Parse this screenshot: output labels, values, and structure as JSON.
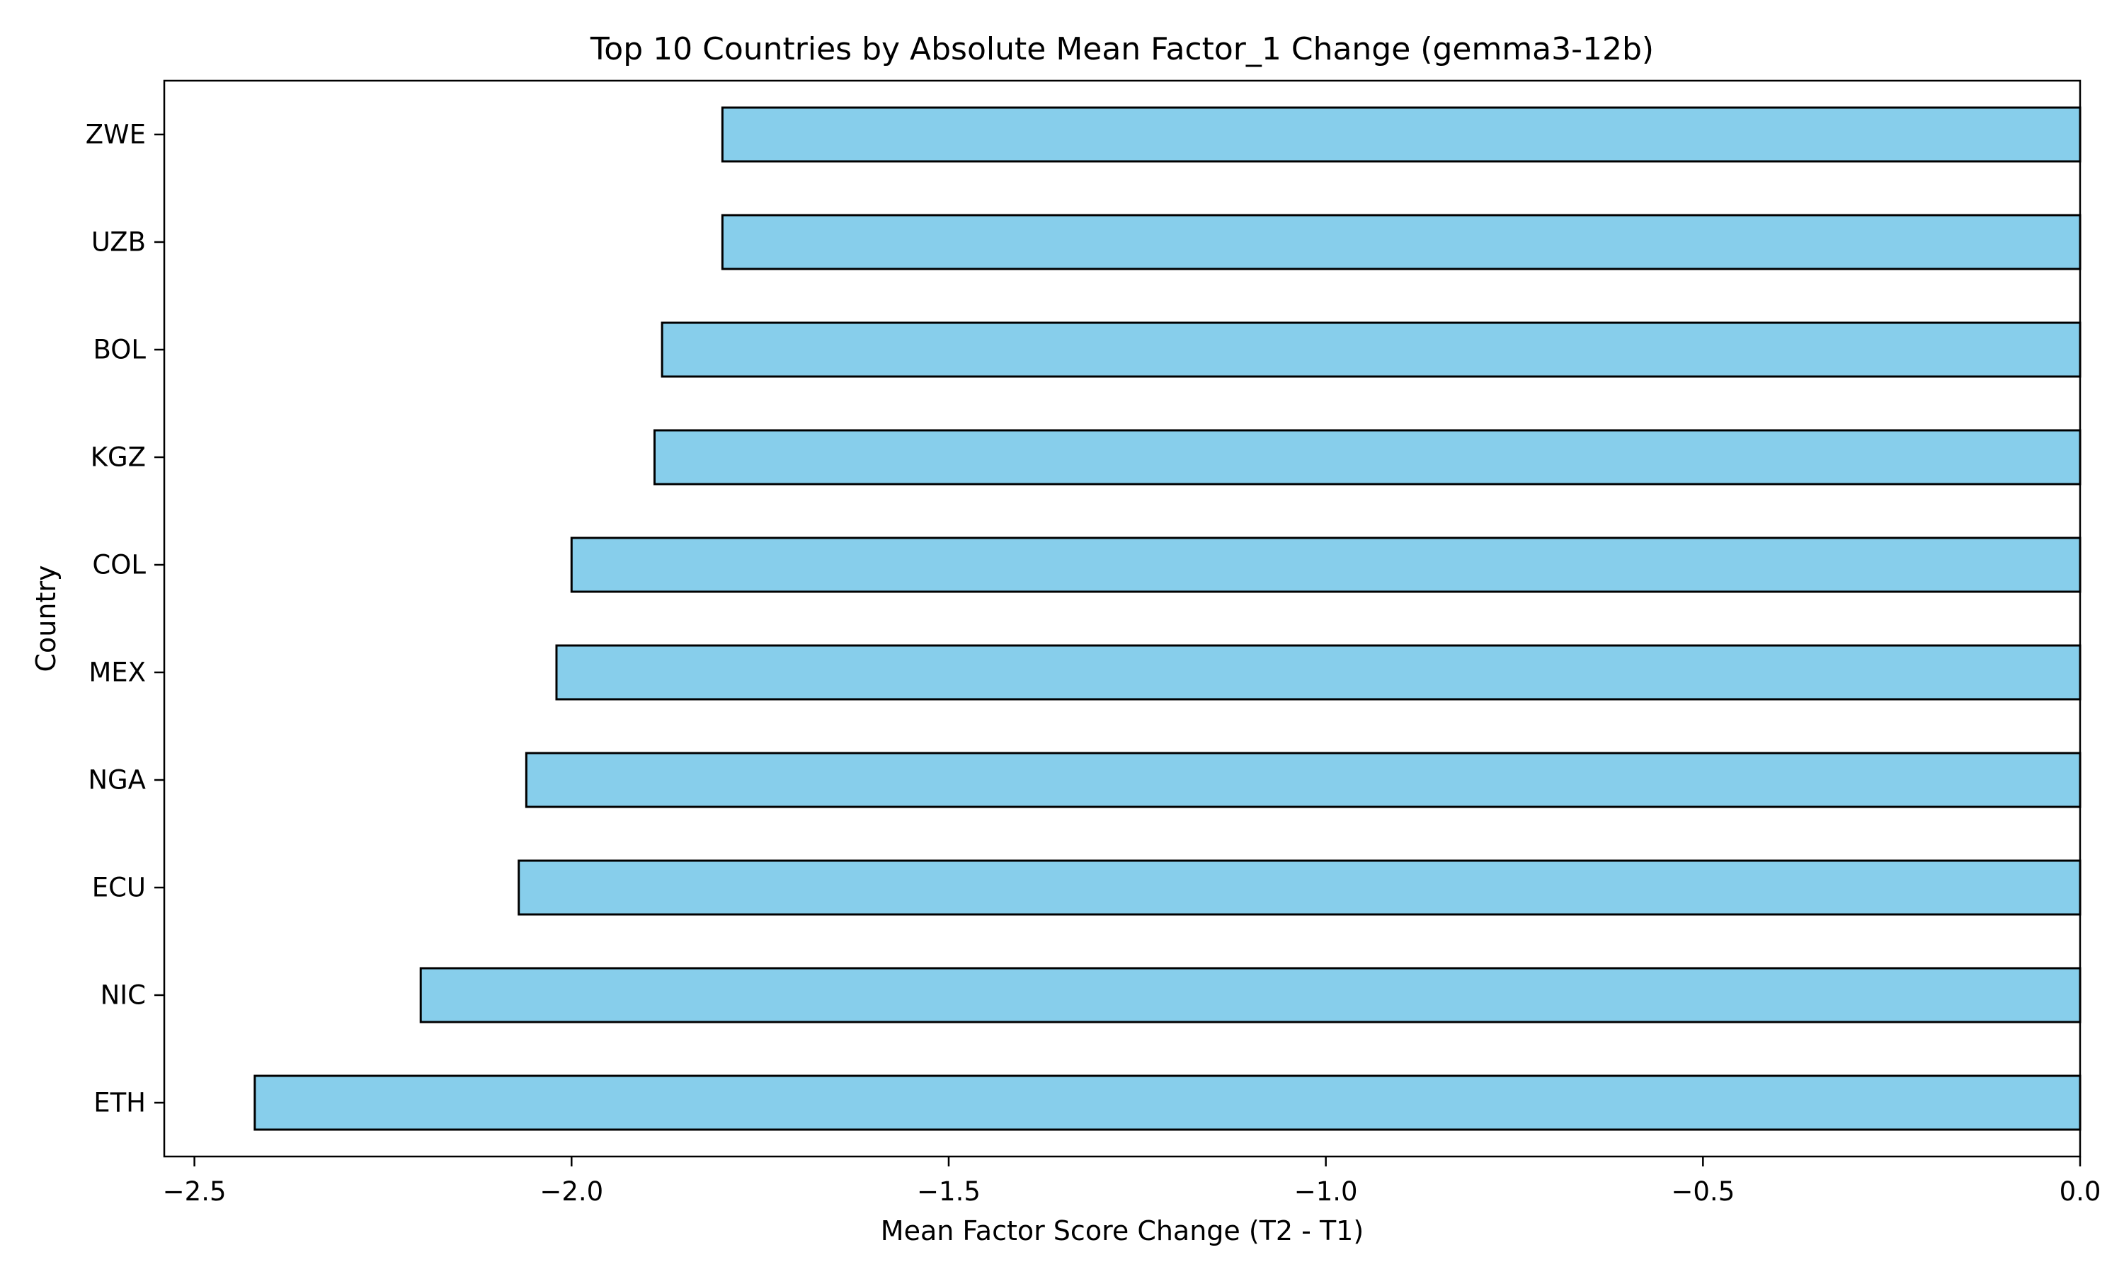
{
  "chart_data": {
    "type": "bar",
    "orientation": "horizontal",
    "title": "Top 10 Countries by Absolute Mean Factor_1 Change (gemma3-12b)",
    "xlabel": "Mean Factor Score Change (T2 - T1)",
    "ylabel": "Country",
    "categories": [
      "ZWE",
      "UZB",
      "BOL",
      "KGZ",
      "COL",
      "MEX",
      "NGA",
      "ECU",
      "NIC",
      "ETH"
    ],
    "values": [
      -1.8,
      -1.8,
      -1.88,
      -1.89,
      -2.0,
      -2.02,
      -2.06,
      -2.07,
      -2.2,
      -2.42
    ],
    "xlim": [
      -2.54,
      0.0
    ],
    "xticks": [
      -2.5,
      -2.0,
      -1.5,
      -1.0,
      -0.5,
      0.0
    ],
    "xtick_labels": [
      "−2.5",
      "−2.0",
      "−1.5",
      "−1.0",
      "−0.5",
      "0.0"
    ],
    "grid": false,
    "colors": {
      "bar_fill": "#87ceeb",
      "bar_edge": "#000000"
    }
  }
}
